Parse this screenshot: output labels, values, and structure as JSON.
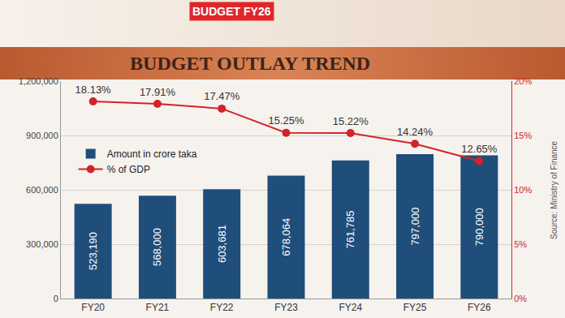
{
  "chart_data": {
    "type": "bar",
    "title": "BUDGET OUTLAY TREND",
    "subtitle": "BUDGET FY26",
    "annotations": [
      "Source: Ministry of Finance"
    ],
    "categories": [
      "FY20",
      "FY21",
      "FY22",
      "FY23",
      "FY24",
      "FY25",
      "FY26"
    ],
    "series": [
      {
        "name": "Amount in crore taka",
        "type": "bar",
        "color": "#1f4e7a",
        "values": [
          523190,
          568000,
          603681,
          678064,
          761785,
          797000,
          790000
        ],
        "value_labels": [
          "523,190",
          "568,000",
          "603,681",
          "678,064",
          "761,785",
          "797,000",
          "790,000"
        ]
      },
      {
        "name": "% of GDP",
        "type": "line",
        "axis": "y2",
        "color": "#d2232a",
        "marker": "circle",
        "values": [
          18.13,
          17.91,
          17.47,
          15.25,
          15.22,
          14.24,
          12.65
        ],
        "value_labels": [
          "18.13%",
          "17.91%",
          "17.47%",
          "15.25%",
          "15.22%",
          "14.24%",
          "12.65%"
        ]
      }
    ],
    "ylim": [
      0,
      1200000
    ],
    "yticks": [
      0,
      {
        "value": 300000,
        "label": "300,000"
      },
      {
        "value": 600000,
        "label": "600,000"
      },
      {
        "value": 900000,
        "label": "900,000"
      },
      {
        "value": 1200000,
        "label": "1,200,000"
      }
    ],
    "y2lim": [
      0,
      20
    ],
    "y2ticks": [
      {
        "value": 0,
        "label": "0%"
      },
      {
        "value": 5,
        "label": "5%"
      },
      {
        "value": 10,
        "label": "10%"
      },
      {
        "value": 15,
        "label": "15%"
      },
      {
        "value": 20,
        "label": "20%"
      }
    ],
    "grid": true,
    "legend": "upper left",
    "data_labels": true
  }
}
